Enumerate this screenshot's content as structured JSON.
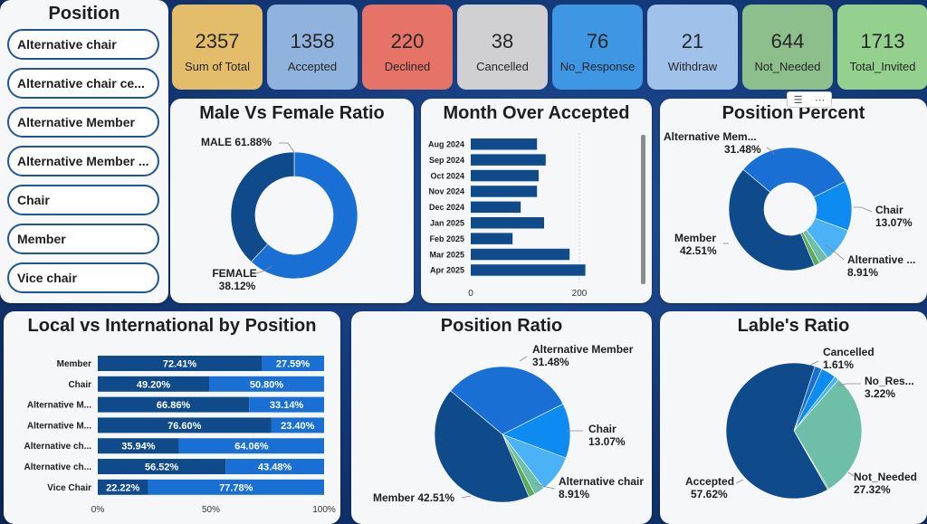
{
  "slicer": {
    "title": "Position",
    "items": [
      "Alternative chair",
      "Alternative chair ce...",
      "Alternative Member",
      "Alternative Member ...",
      "Chair",
      "Member",
      "Vice chair"
    ]
  },
  "kpis": [
    {
      "value": "2357",
      "label": "Sum of Total",
      "color": "#e4bd6a"
    },
    {
      "value": "1358",
      "label": "Accepted",
      "color": "#8fb3dd"
    },
    {
      "value": "220",
      "label": "Declined",
      "color": "#e57368"
    },
    {
      "value": "38",
      "label": "Cancelled",
      "color": "#d0d0d3"
    },
    {
      "value": "76",
      "label": "No_Response",
      "color": "#3f97e4"
    },
    {
      "value": "21",
      "label": "Withdraw",
      "color": "#9fc1ea"
    },
    {
      "value": "644",
      "label": "Not_Needed",
      "color": "#8cbf8c"
    },
    {
      "value": "1713",
      "label": "Total_Invited",
      "color": "#94d08e"
    }
  ],
  "colors": {
    "dark": "#0f4a8a",
    "mid": "#1a6fd4",
    "light": "#0d8bf0",
    "pale": "#4ab2f5",
    "teal": "#6fbfa8",
    "green": "#5fa95f"
  },
  "toolbar": {
    "filter_icon": "filter-icon",
    "more_icon": "more-options-icon"
  },
  "chart_data": [
    {
      "type": "pie",
      "title": "Male Vs Female Ratio",
      "donut": true,
      "slices": [
        {
          "name": "MALE",
          "value": 61.88,
          "label": "MALE 61.88%",
          "color": "#1a6fd4"
        },
        {
          "name": "FEMALE",
          "value": 38.12,
          "label": "FEMALE 38.12%",
          "color": "#0f4a8a"
        }
      ]
    },
    {
      "type": "bar",
      "orientation": "horizontal",
      "title": "Month Over Accepted",
      "categories": [
        "Aug 2024",
        "Sep 2024",
        "Oct 2024",
        "Nov 2024",
        "Dec 2024",
        "Jan 2025",
        "Feb 2025",
        "Mar 2025",
        "Apr 2025"
      ],
      "values": [
        122,
        138,
        125,
        122,
        92,
        135,
        77,
        182,
        211
      ],
      "xlim": [
        0,
        250
      ],
      "xticks": [
        "0",
        "200"
      ],
      "color": "#0f4a8a"
    },
    {
      "type": "pie",
      "title": "Position Percent",
      "donut": true,
      "slices": [
        {
          "name": "Alternative Mem...",
          "value": 31.48,
          "label": "31.48%",
          "color": "#1a6fd4"
        },
        {
          "name": "Chair",
          "value": 13.07,
          "label": "13.07%",
          "color": "#0d8bf0"
        },
        {
          "name": "Alternative ...",
          "value": 8.91,
          "label": "8.91%",
          "color": "#4ab2f5"
        },
        {
          "name": "",
          "value": 2.5,
          "label": "",
          "color": "#6fbfa8"
        },
        {
          "name": "",
          "value": 1.53,
          "label": "",
          "color": "#5fa95f"
        },
        {
          "name": "Member",
          "value": 42.51,
          "label": "42.51%",
          "color": "#0f4a8a"
        }
      ]
    },
    {
      "type": "bar",
      "orientation": "horizontal-stacked-100",
      "title": "Local vs International by Position",
      "categories": [
        "Member",
        "Chair",
        "Alternative M...",
        "Alternative M...",
        "Alternative ch...",
        "Alternative ch...",
        "Vice Chair"
      ],
      "series": [
        {
          "values": [
            72.41,
            49.2,
            66.86,
            76.6,
            35.94,
            56.52,
            22.22
          ],
          "labels": [
            "72.41%",
            "49.20%",
            "66.86%",
            "76.60%",
            "35.94%",
            "56.52%",
            "22.22%"
          ],
          "color": "#0f4a8a"
        },
        {
          "values": [
            27.59,
            50.8,
            33.14,
            23.4,
            64.06,
            43.48,
            77.78
          ],
          "labels": [
            "27.59%",
            "50.80%",
            "33.14%",
            "23.40%",
            "64.06%",
            "43.48%",
            "77.78%"
          ],
          "color": "#1a6fd4"
        }
      ],
      "xticks": [
        "0%",
        "50%",
        "100%"
      ]
    },
    {
      "type": "pie",
      "title": "Position Ratio",
      "slices": [
        {
          "name": "Alternative Member",
          "value": 31.48,
          "label": "31.48%",
          "color": "#1a6fd4"
        },
        {
          "name": "Chair",
          "value": 13.07,
          "label": "13.07%",
          "color": "#0d8bf0"
        },
        {
          "name": "Alternative chair",
          "value": 8.91,
          "label": "8.91%",
          "color": "#4ab2f5"
        },
        {
          "name": "",
          "value": 2.5,
          "label": "",
          "color": "#6fbfa8"
        },
        {
          "name": "",
          "value": 1.53,
          "label": "",
          "color": "#5fa95f"
        },
        {
          "name": "Member",
          "value": 42.51,
          "label": "Member 42.51%",
          "color": "#0f4a8a"
        }
      ]
    },
    {
      "type": "pie",
      "title": "Lable's Ratio",
      "slices": [
        {
          "name": "Cancelled",
          "value": 1.61,
          "label": "1.61%",
          "color": "#1a6fd4"
        },
        {
          "name": "No_Res...",
          "value": 3.22,
          "label": "3.22%",
          "color": "#0d8bf0"
        },
        {
          "name": "",
          "value": 1.0,
          "label": "",
          "color": "#4ab2f5"
        },
        {
          "name": "Not_Needed",
          "value": 27.32,
          "label": "27.32%",
          "color": "#6fbfa8"
        },
        {
          "name": "",
          "value": 0.3,
          "label": "",
          "color": "#5fa95f"
        },
        {
          "name": "Accepted",
          "value": 57.62,
          "label": "57.62%",
          "color": "#0f4a8a"
        }
      ]
    }
  ]
}
